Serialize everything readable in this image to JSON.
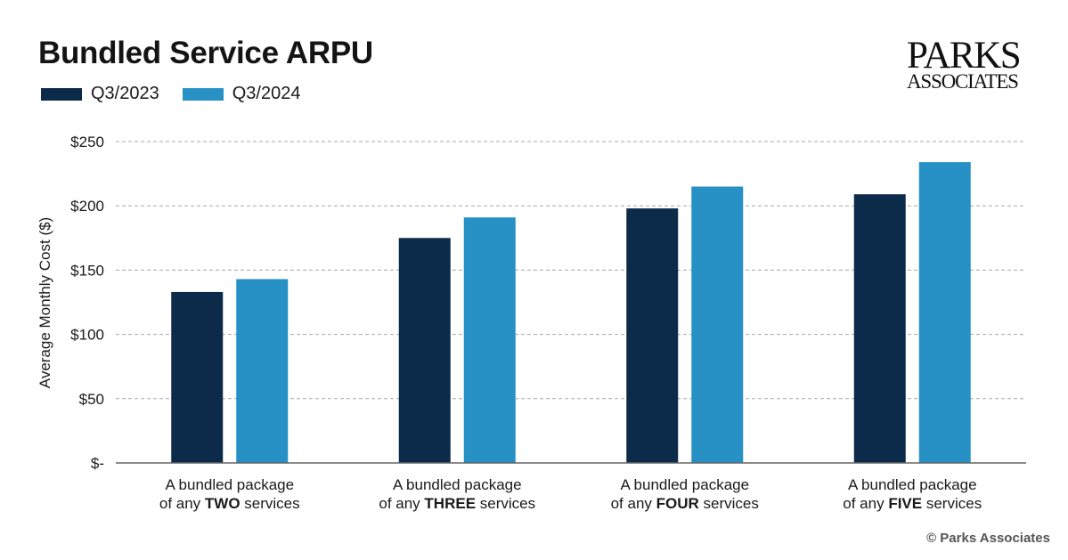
{
  "colors": {
    "q3_2023": "#0c2a4a",
    "q3_2024": "#2790c5",
    "grid": "#a8a8a8",
    "axis": "#666666"
  },
  "chart_data": {
    "type": "bar",
    "title": "Bundled Service ARPU",
    "ylabel": "Average Monthly Cost ($)",
    "ylim": [
      0,
      250
    ],
    "yticks": [
      0,
      50,
      100,
      150,
      200,
      250
    ],
    "ytick_labels": [
      "$-",
      "$50",
      "$100",
      "$150",
      "$200",
      "$250"
    ],
    "grid": true,
    "legend": "top-left",
    "categories": [
      {
        "prefix": "A bundled package",
        "mid": "of any ",
        "em": "TWO",
        "suffix": " services"
      },
      {
        "prefix": "A bundled package",
        "mid": "of any ",
        "em": "THREE",
        "suffix": " services"
      },
      {
        "prefix": "A bundled package",
        "mid": "of any ",
        "em": "FOUR",
        "suffix": " services"
      },
      {
        "prefix": "A bundled package",
        "mid": "of any ",
        "em": "FIVE",
        "suffix": " services"
      }
    ],
    "series": [
      {
        "name": "Q3/2023",
        "color": "#0c2a4a",
        "values": [
          133,
          175,
          198,
          209
        ]
      },
      {
        "name": "Q3/2024",
        "color": "#2790c5",
        "values": [
          143,
          191,
          215,
          234
        ]
      }
    ]
  },
  "logo": {
    "line1": "PARKS",
    "line2": "ASSOCIATES"
  },
  "copyright": "© Parks Associates"
}
